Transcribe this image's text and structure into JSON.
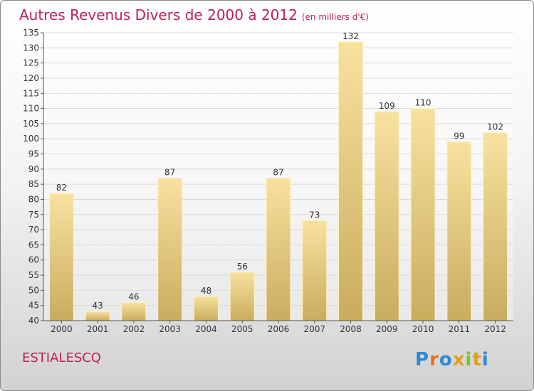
{
  "header": {
    "title": "Autres Revenus Divers de 2000 à 2012",
    "unit": "(en milliers d'€)"
  },
  "footer": {
    "place": "ESTIALESCQ",
    "brand": "Proxiti"
  },
  "colors": {
    "title": "#c0205a",
    "bar_light": "#f8e2a0",
    "bar_dark": "#c9ac5e",
    "axis": "#555555",
    "grid": "#d9d9d9"
  },
  "chart_data": {
    "type": "bar",
    "title": "Autres Revenus Divers de 2000 à 2012",
    "subtitle": "(en milliers d'€)",
    "categories": [
      "2000",
      "2001",
      "2002",
      "2003",
      "2004",
      "2005",
      "2006",
      "2007",
      "2008",
      "2009",
      "2010",
      "2011",
      "2012"
    ],
    "values": [
      82,
      43,
      46,
      87,
      48,
      56,
      87,
      73,
      132,
      109,
      110,
      99,
      102
    ],
    "ylim": [
      40,
      135
    ],
    "yticks": [
      40,
      45,
      50,
      55,
      60,
      65,
      70,
      75,
      80,
      85,
      90,
      95,
      100,
      105,
      110,
      115,
      120,
      125,
      130,
      135
    ],
    "grid": true,
    "data_labels": true
  }
}
